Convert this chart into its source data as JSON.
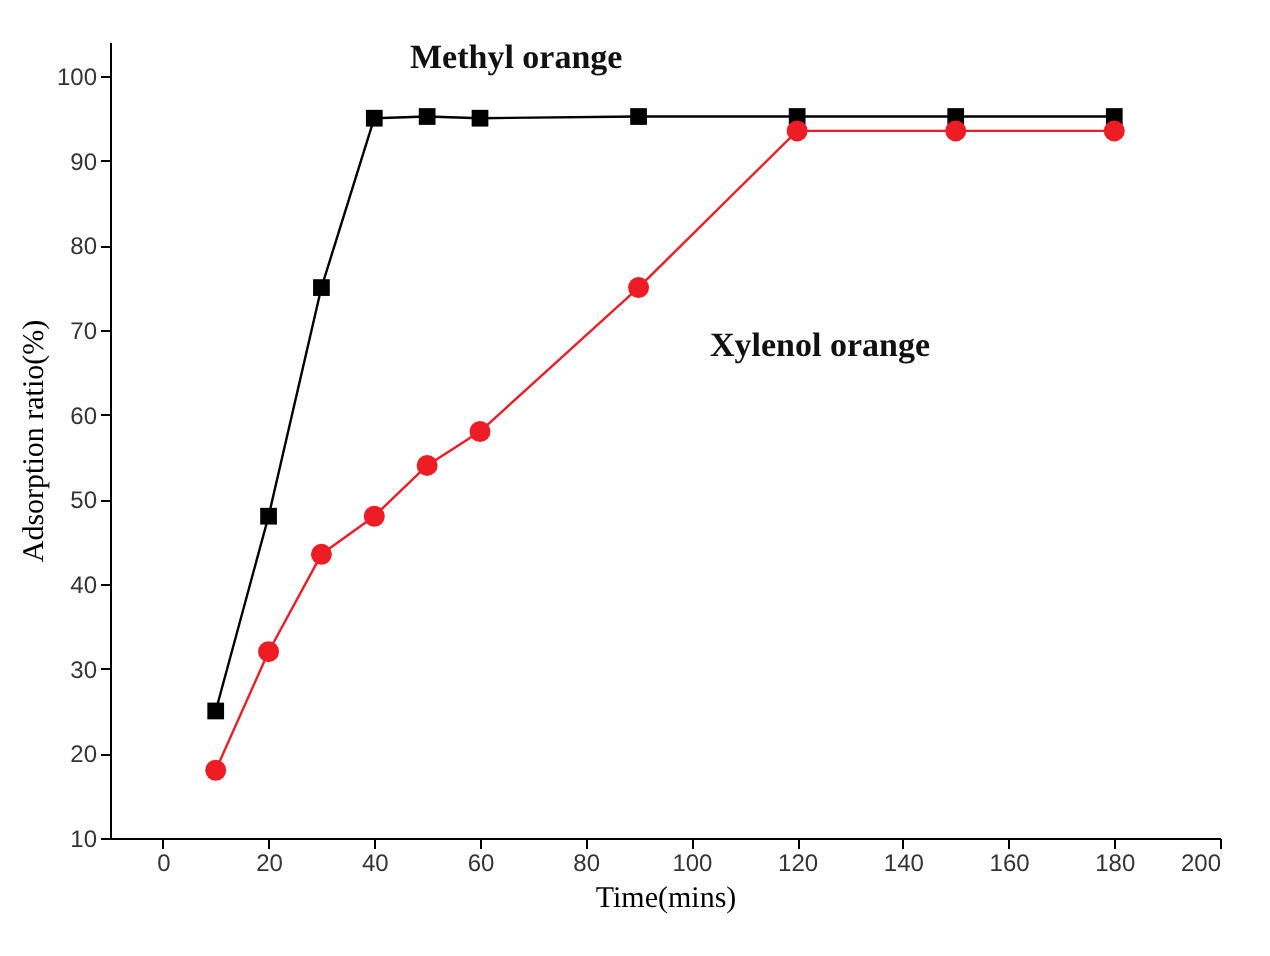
{
  "chart_data": {
    "type": "line",
    "xlabel": "Time(mins)",
    "ylabel": "Adsorption ratio(%)",
    "xlim": [
      -10,
      200
    ],
    "xticks": [
      0,
      20,
      40,
      60,
      80,
      100,
      120,
      140,
      160,
      180,
      200
    ],
    "ylim": [
      10,
      104
    ],
    "yticks": [
      10,
      20,
      30,
      40,
      50,
      60,
      70,
      80,
      90,
      100
    ],
    "x": [
      10,
      20,
      30,
      40,
      50,
      60,
      90,
      120,
      150,
      180
    ],
    "grid": false,
    "series": [
      {
        "name": "Methyl orange",
        "color": "#000000",
        "marker": "square",
        "values": [
          25,
          48,
          75,
          95,
          95.2,
          95,
          95.2,
          95.2,
          95.2,
          95.2
        ]
      },
      {
        "name": "Xylenol orange",
        "color": "#ee1c24",
        "marker": "circle",
        "values": [
          18,
          32,
          43.5,
          48,
          54,
          58,
          75,
          93.5,
          93.5,
          93.5
        ]
      }
    ]
  }
}
